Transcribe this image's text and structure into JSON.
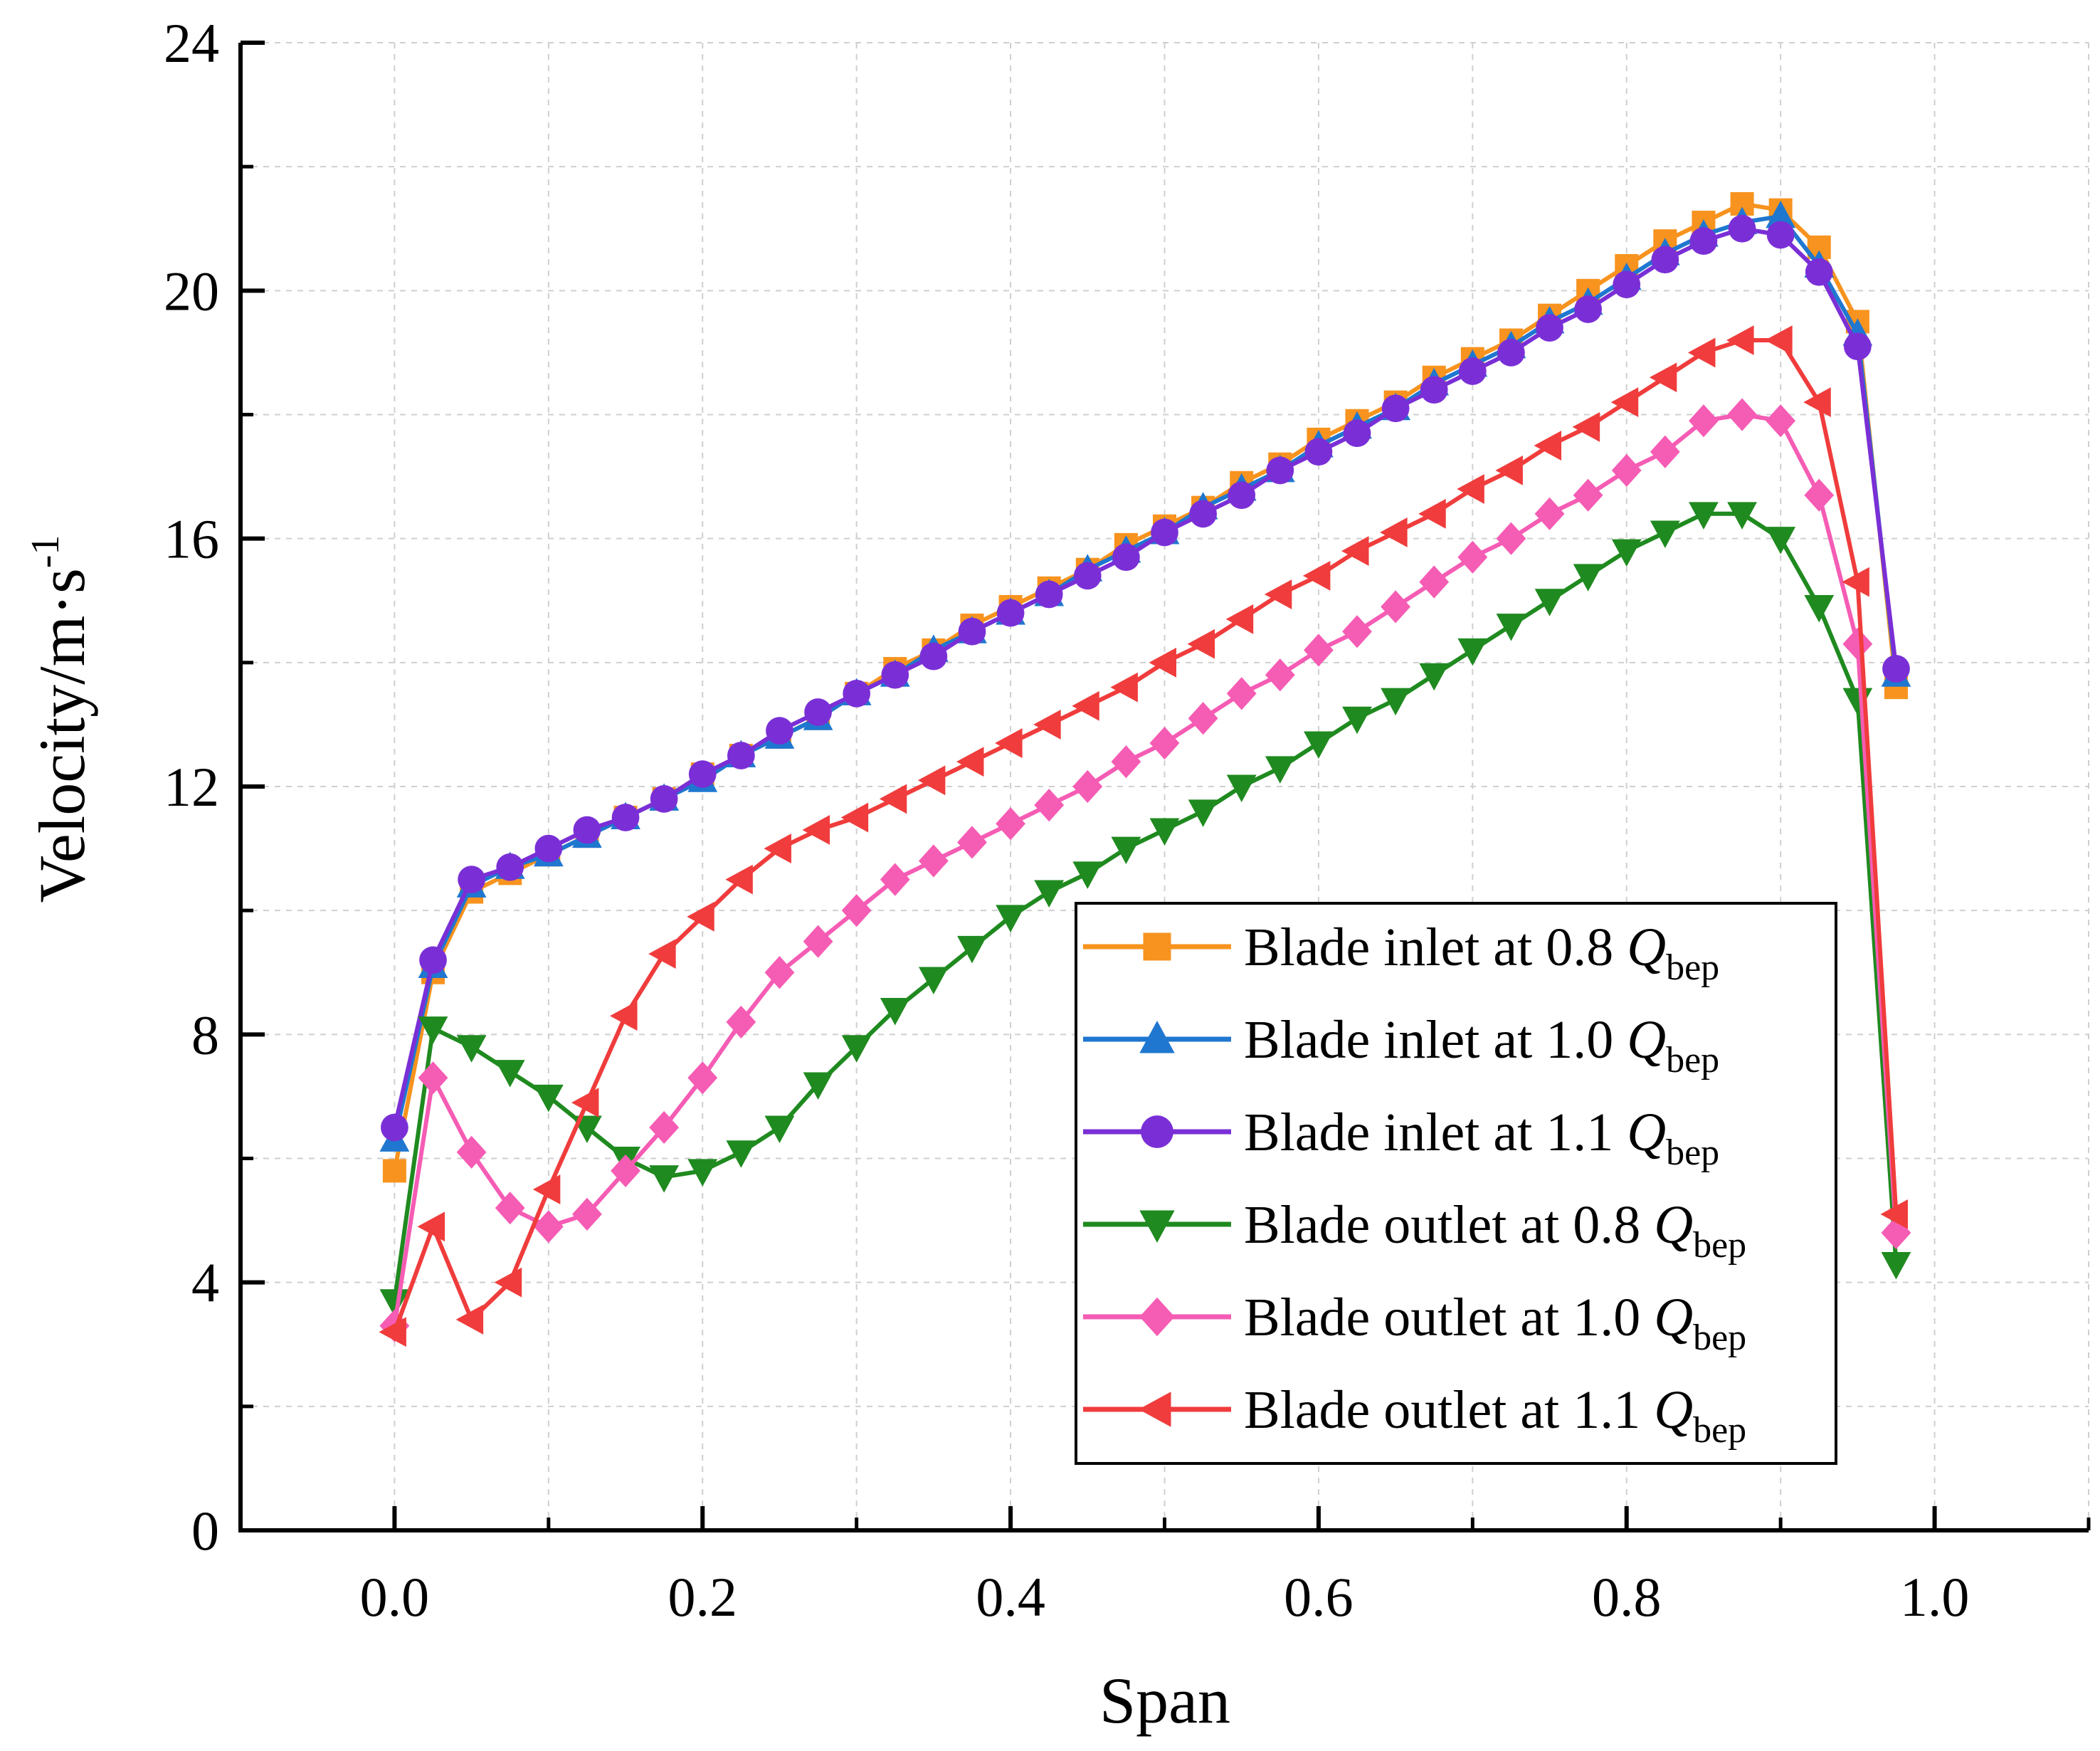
{
  "chart_data": {
    "type": "line",
    "title": "",
    "xlabel": "Span",
    "ylabel": "Velocity/m·s",
    "ylabel_superscript": "-1",
    "xlim": [
      -0.1,
      1.1
    ],
    "ylim": [
      0,
      24
    ],
    "xticks": [
      0.0,
      0.2,
      0.4,
      0.6,
      0.8,
      1.0
    ],
    "xtick_labels": [
      "0.0",
      "0.2",
      "0.4",
      "0.6",
      "0.8",
      "1.0"
    ],
    "yticks": [
      0,
      4,
      8,
      12,
      16,
      20,
      24
    ],
    "ytick_labels": [
      "0",
      "4",
      "8",
      "12",
      "16",
      "20",
      "24"
    ],
    "grid": true,
    "legend_position": "lower-right",
    "x": [
      0,
      0.025,
      0.05,
      0.075,
      0.1,
      0.125,
      0.15,
      0.175,
      0.2,
      0.225,
      0.25,
      0.275,
      0.3,
      0.325,
      0.35,
      0.375,
      0.4,
      0.425,
      0.45,
      0.475,
      0.5,
      0.525,
      0.55,
      0.575,
      0.6,
      0.625,
      0.65,
      0.675,
      0.7,
      0.725,
      0.75,
      0.775,
      0.8,
      0.825,
      0.85,
      0.875,
      0.9,
      0.925,
      0.95,
      0.975
    ],
    "series": [
      {
        "name_main": "Blade inlet at 0.8 ",
        "name_q": "Q",
        "name_sub": "bep",
        "color": "#f7931e",
        "marker": "square",
        "values": [
          5.8,
          9.0,
          10.3,
          10.6,
          10.9,
          11.2,
          11.5,
          11.8,
          12.2,
          12.5,
          12.8,
          13.1,
          13.5,
          13.9,
          14.2,
          14.6,
          14.9,
          15.2,
          15.5,
          15.9,
          16.2,
          16.5,
          16.9,
          17.2,
          17.6,
          17.9,
          18.2,
          18.6,
          18.9,
          19.2,
          19.6,
          20.0,
          20.4,
          20.8,
          21.1,
          21.4,
          21.3,
          20.7,
          19.5,
          13.6
        ]
      },
      {
        "name_main": "Blade inlet at 1.0 ",
        "name_q": "Q",
        "name_sub": "bep",
        "color": "#1f77d0",
        "marker": "triangle-up",
        "values": [
          6.3,
          9.1,
          10.4,
          10.7,
          10.9,
          11.2,
          11.5,
          11.8,
          12.1,
          12.5,
          12.8,
          13.1,
          13.5,
          13.8,
          14.2,
          14.5,
          14.8,
          15.1,
          15.5,
          15.8,
          16.1,
          16.5,
          16.8,
          17.1,
          17.5,
          17.8,
          18.1,
          18.5,
          18.8,
          19.1,
          19.5,
          19.8,
          20.2,
          20.6,
          20.9,
          21.1,
          21.2,
          20.4,
          19.3,
          13.8
        ]
      },
      {
        "name_main": "Blade inlet at 1.1 ",
        "name_q": "Q",
        "name_sub": "bep",
        "color": "#7a2fd6",
        "marker": "circle",
        "values": [
          6.5,
          9.2,
          10.5,
          10.7,
          11.0,
          11.3,
          11.5,
          11.8,
          12.2,
          12.5,
          12.9,
          13.2,
          13.5,
          13.8,
          14.1,
          14.5,
          14.8,
          15.1,
          15.4,
          15.7,
          16.1,
          16.4,
          16.7,
          17.1,
          17.4,
          17.7,
          18.1,
          18.4,
          18.7,
          19.0,
          19.4,
          19.7,
          20.1,
          20.5,
          20.8,
          21.0,
          20.9,
          20.3,
          19.1,
          13.9
        ]
      },
      {
        "name_main": "Blade outlet at 0.8 ",
        "name_q": "Q",
        "name_sub": "bep",
        "color": "#1f8a1f",
        "marker": "triangle-down",
        "values": [
          3.7,
          8.1,
          7.8,
          7.4,
          7.0,
          6.5,
          6.0,
          5.7,
          5.8,
          6.1,
          6.5,
          7.2,
          7.8,
          8.4,
          8.9,
          9.4,
          9.9,
          10.3,
          10.6,
          11.0,
          11.3,
          11.6,
          12.0,
          12.3,
          12.7,
          13.1,
          13.4,
          13.8,
          14.2,
          14.6,
          15.0,
          15.4,
          15.8,
          16.1,
          16.4,
          16.4,
          16.0,
          14.9,
          13.4,
          4.3
        ]
      },
      {
        "name_main": "Blade outlet at 1.0 ",
        "name_q": "Q",
        "name_sub": "bep",
        "color": "#f55cb4",
        "marker": "diamond",
        "values": [
          3.3,
          7.3,
          6.1,
          5.2,
          4.9,
          5.1,
          5.8,
          6.5,
          7.3,
          8.2,
          9.0,
          9.5,
          10.0,
          10.5,
          10.8,
          11.1,
          11.4,
          11.7,
          12.0,
          12.4,
          12.7,
          13.1,
          13.5,
          13.8,
          14.2,
          14.5,
          14.9,
          15.3,
          15.7,
          16.0,
          16.4,
          16.7,
          17.1,
          17.4,
          17.9,
          18.0,
          17.9,
          16.7,
          14.3,
          4.8
        ]
      },
      {
        "name_main": "Blade outlet at 1.1 ",
        "name_q": "Q",
        "name_sub": "bep",
        "color": "#f03c3c",
        "marker": "triangle-left",
        "values": [
          3.2,
          4.9,
          3.4,
          4.0,
          5.5,
          6.9,
          8.3,
          9.3,
          9.9,
          10.5,
          11.0,
          11.3,
          11.5,
          11.8,
          12.1,
          12.4,
          12.7,
          13.0,
          13.3,
          13.6,
          14.0,
          14.3,
          14.7,
          15.1,
          15.4,
          15.8,
          16.1,
          16.4,
          16.8,
          17.1,
          17.5,
          17.8,
          18.2,
          18.6,
          19.0,
          19.2,
          19.2,
          18.2,
          15.3,
          5.1
        ]
      }
    ]
  }
}
